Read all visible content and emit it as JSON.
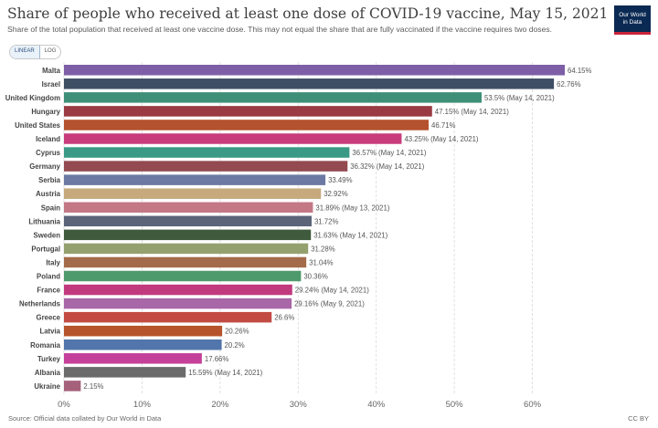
{
  "title": "Share of people who received at least one dose of COVID-19 vaccine, May 15, 2021",
  "subtitle": "Share of the total population that received at least one vaccine dose. This may not equal the share that are fully vaccinated if the vaccine requires two doses.",
  "logo": {
    "line1": "Our World",
    "line2": "in Data",
    "bg": "#0b2a53",
    "accent": "#c9243a"
  },
  "scale_toggle": {
    "linear": "LINEAR",
    "log": "LOG",
    "active": "linear"
  },
  "source": "Source: Official data collated by Our World in Data",
  "license": "CC BY",
  "chart_data": {
    "type": "bar",
    "orientation": "horizontal",
    "xlim": [
      0,
      0.6415
    ],
    "xticks": [
      0,
      10,
      20,
      30,
      40,
      50,
      60
    ],
    "xtick_labels": [
      "0%",
      "10%",
      "20%",
      "30%",
      "40%",
      "50%",
      "60%"
    ],
    "grid": "vertical dashed",
    "categories": [
      "Malta",
      "Israel",
      "United Kingdom",
      "Hungary",
      "United States",
      "Iceland",
      "Cyprus",
      "Germany",
      "Serbia",
      "Austria",
      "Spain",
      "Lithuania",
      "Sweden",
      "Portugal",
      "Italy",
      "Poland",
      "France",
      "Netherlands",
      "Greece",
      "Latvia",
      "Romania",
      "Turkey",
      "Albania",
      "Ukraine"
    ],
    "values": [
      64.15,
      62.76,
      53.5,
      47.15,
      46.71,
      43.25,
      36.57,
      36.32,
      33.49,
      32.92,
      31.89,
      31.72,
      31.63,
      31.28,
      31.04,
      30.36,
      29.24,
      29.16,
      26.6,
      20.26,
      20.2,
      17.66,
      15.59,
      2.15
    ],
    "value_labels": [
      "64.15%",
      "62.76%",
      "53.5% (May 14, 2021)",
      "47.15% (May 14, 2021)",
      "46.71%",
      "43.25% (May 14, 2021)",
      "36.57% (May 14, 2021)",
      "36.32% (May 14, 2021)",
      "33.49%",
      "32.92%",
      "31.89% (May 13, 2021)",
      "31.72%",
      "31.63% (May 14, 2021)",
      "31.28%",
      "31.04%",
      "30.36%",
      "29.24% (May 14, 2021)",
      "29.16% (May 9, 2021)",
      "26.6%",
      "20.26%",
      "20.2%",
      "17.66%",
      "15.59% (May 14, 2021)",
      "2.15%"
    ],
    "colors": [
      "#7e5ea6",
      "#3e4e63",
      "#3f8f78",
      "#9a3a42",
      "#b4512e",
      "#c83c7b",
      "#3b9a86",
      "#934a50",
      "#6c7aa3",
      "#c6a97d",
      "#c47886",
      "#5b6478",
      "#3f5a3d",
      "#95a06f",
      "#a46b4a",
      "#4f9a6c",
      "#c23a7e",
      "#a867a7",
      "#c24b43",
      "#b6542e",
      "#5276ab",
      "#c5409a",
      "#6b6b6b",
      "#a5607a"
    ]
  }
}
